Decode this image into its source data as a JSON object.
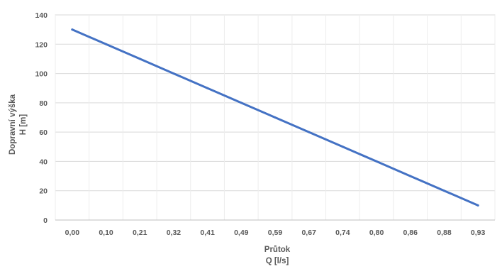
{
  "chart_data": {
    "type": "line",
    "categories": [
      "0,00",
      "0,10",
      "0,21",
      "0,32",
      "0,41",
      "0,49",
      "0,59",
      "0,67",
      "0,74",
      "0,80",
      "0,86",
      "0,88",
      "0,93"
    ],
    "series": [
      {
        "values": [
          130,
          120,
          110,
          100,
          90,
          80,
          70,
          60,
          50,
          40,
          30,
          20,
          10
        ],
        "color": "#4472c4"
      }
    ],
    "title": "",
    "xlabel": [
      "Průtok",
      "Q [l/s]"
    ],
    "ylabel": [
      "Dopravní výška",
      "H [m]"
    ],
    "ylim": [
      0,
      140
    ],
    "yticks": [
      "0",
      "20",
      "40",
      "60",
      "80",
      "100",
      "120",
      "140"
    ],
    "grid": true,
    "legend": "none"
  }
}
